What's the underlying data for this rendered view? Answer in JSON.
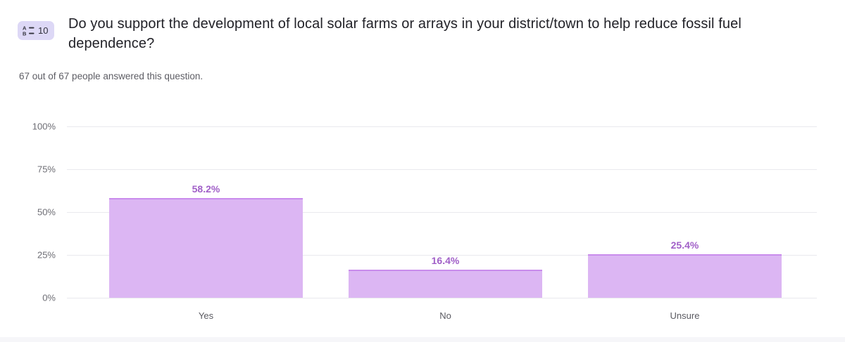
{
  "header": {
    "question_number": "10",
    "badge_icon": "multiple-choice-list-icon",
    "question": "Do you support the development of local solar farms or arrays in your district/town to help reduce fossil fuel dependence?",
    "answered_text": "67 out of 67 people answered this question."
  },
  "colors": {
    "badge_bg": "#ddd8f6",
    "bar_fill": "#dcb6f3",
    "bar_top_border": "#c98cec",
    "value_label": "#a160c8",
    "gridline": "#e9e9ee"
  },
  "chart_data": {
    "type": "bar",
    "categories": [
      "Yes",
      "No",
      "Unsure"
    ],
    "values": [
      58.2,
      16.4,
      25.4
    ],
    "value_labels": [
      "58.2%",
      "16.4%",
      "25.4%"
    ],
    "yticks": [
      {
        "label": "100%",
        "value": 100
      },
      {
        "label": "75%",
        "value": 75
      },
      {
        "label": "50%",
        "value": 50
      },
      {
        "label": "25%",
        "value": 25
      },
      {
        "label": "0%",
        "value": 0
      }
    ],
    "ylim": [
      0,
      100
    ],
    "grid": true,
    "legend_position": "none",
    "title": "",
    "xlabel": "",
    "ylabel": ""
  }
}
